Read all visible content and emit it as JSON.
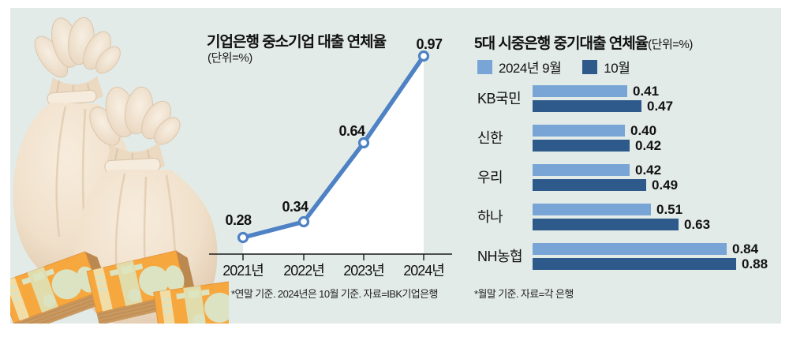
{
  "colors": {
    "panel_background": "#e2ebe8",
    "line_blue": "#4e82c4",
    "bar_light_blue": "#78a5d6",
    "bar_dark_blue": "#2d5a8a",
    "text": "#111111",
    "area_fill": "#ffffff"
  },
  "chart_data": [
    {
      "type": "line",
      "title": "기업은행 중소기업 대출 연체율",
      "unit_label": "(단위=%)",
      "categories": [
        "2021년",
        "2022년",
        "2023년",
        "2024년"
      ],
      "values": [
        0.28,
        0.34,
        0.64,
        0.97
      ],
      "ylim": [
        0.2,
        1.05
      ],
      "grid": false,
      "marker": "open-circle",
      "line_color": "#4e82c4",
      "area_fill": "#ffffff",
      "footnote": "*연말 기준. 2024년은 10월 기준. 자료=IBK기업은행"
    },
    {
      "type": "bar",
      "orientation": "horizontal",
      "title": "5대 시중은행 중기대출 연체율",
      "unit_label": "(단위=%)",
      "legend_position": "top",
      "categories": [
        "KB국민",
        "신한",
        "우리",
        "하나",
        "NH농협"
      ],
      "series": [
        {
          "name": "2024년 9월",
          "color": "#78a5d6",
          "values": [
            0.41,
            0.4,
            0.42,
            0.51,
            0.84
          ]
        },
        {
          "name": "10월",
          "color": "#2d5a8a",
          "values": [
            0.47,
            0.42,
            0.49,
            0.63,
            0.88
          ]
        }
      ],
      "xlim": [
        0,
        0.88
      ],
      "value_labels_decimals": 2,
      "footnote": "*월말 기준. 자료=각 은행"
    }
  ],
  "illustration": {
    "description": "money-bags-and-banknote-bundles",
    "items": [
      "money-bag",
      "money-bag",
      "banknote-bundle",
      "banknote-bundle",
      "banknote-bundle"
    ]
  }
}
